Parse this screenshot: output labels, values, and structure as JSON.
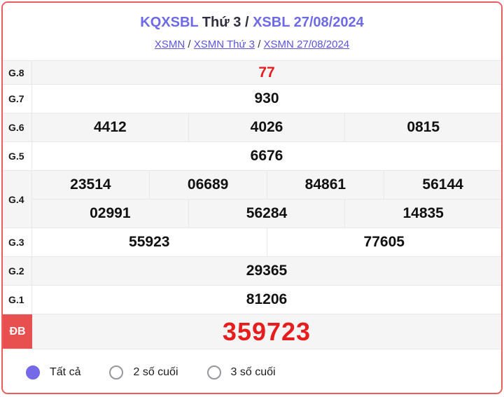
{
  "header": {
    "title_part1": "KQXSBL",
    "title_part2": " Thứ 3 / ",
    "title_part3": "XSBL 27/08/2024",
    "breadcrumb": {
      "links": [
        "XSMN",
        "XSMN Thứ 3",
        "XSMN 27/08/2024"
      ],
      "separator": " / "
    }
  },
  "results": {
    "g8": {
      "label": "G.8",
      "values": [
        "77"
      ]
    },
    "g7": {
      "label": "G.7",
      "values": [
        "930"
      ]
    },
    "g6": {
      "label": "G.6",
      "values": [
        "4412",
        "4026",
        "0815"
      ]
    },
    "g5": {
      "label": "G.5",
      "values": [
        "6676"
      ]
    },
    "g4": {
      "label": "G.4",
      "row1": [
        "23514",
        "06689",
        "84861",
        "56144"
      ],
      "row2": [
        "02991",
        "56284",
        "14835"
      ]
    },
    "g3": {
      "label": "G.3",
      "values": [
        "55923",
        "77605"
      ]
    },
    "g2": {
      "label": "G.2",
      "values": [
        "29365"
      ]
    },
    "g1": {
      "label": "G.1",
      "values": [
        "81206"
      ]
    },
    "db": {
      "label": "ĐB",
      "values": [
        "359723"
      ]
    }
  },
  "filters": {
    "options": [
      {
        "label": "Tất cả",
        "selected": true
      },
      {
        "label": "2 số cuối",
        "selected": false
      },
      {
        "label": "3 số cuối",
        "selected": false
      }
    ]
  },
  "colors": {
    "accent_purple": "#6e6ae6",
    "link_purple": "#5955dd",
    "radio_purple": "#7569e8",
    "result_red": "#e51d1d",
    "badge_red": "#e85050",
    "outer_border_red": "#ee5b5b",
    "stripe_gray": "#f5f5f6"
  }
}
